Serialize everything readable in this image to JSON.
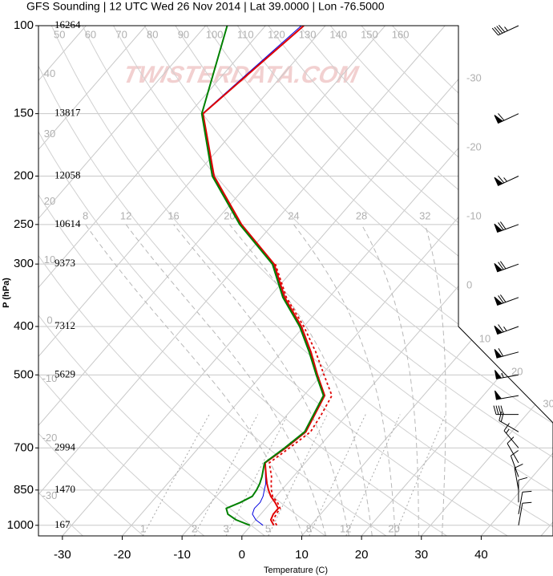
{
  "chart_data": {
    "type": "skewt",
    "title": "GFS Sounding | 12 UTC Wed 26 Nov 2014 | Lat 39.0000 | Lon -76.5000",
    "xlabel": "Temperature (C)",
    "ylabel": "P (hPa)",
    "watermark": "TWISTERDATA.COM",
    "xlim": [
      -34,
      52
    ],
    "ylim": [
      1050,
      100
    ],
    "xticks": [
      -30,
      -20,
      -10,
      0,
      10,
      20,
      30,
      40
    ],
    "yticks": [
      100,
      150,
      200,
      250,
      300,
      400,
      500,
      700,
      850,
      1000
    ],
    "heights": [
      16264,
      13817,
      12058,
      10614,
      9373,
      7312,
      5629,
      2994,
      1470,
      167
    ],
    "grid": true,
    "pressure": [
      1000,
      975,
      950,
      925,
      900,
      875,
      850,
      825,
      800,
      750,
      700,
      650,
      600,
      550,
      500,
      450,
      400,
      350,
      300,
      250,
      200,
      150,
      100
    ],
    "series": [
      {
        "color": "#0000e0",
        "values": [
          2.0,
          0.0,
          -1.4,
          -1.9,
          -1.8,
          -2.2,
          -2.9,
          -3.6,
          -4.6,
          -6.7,
          -5.5,
          -4.5,
          -5.5,
          -6.6,
          -10.8,
          -15.3,
          -20.6,
          -27.6,
          -34.2,
          -45.4,
          -57.0,
          -67.8,
          -64.0
        ]
      },
      {
        "color": "#e00000",
        "values": [
          3.8,
          2.5,
          2.1,
          2.1,
          0.7,
          -0.9,
          -2.2,
          -3.4,
          -4.5,
          -6.7,
          -5.4,
          -4.4,
          -5.4,
          -6.5,
          -10.7,
          -15.1,
          -20.4,
          -27.4,
          -34.0,
          -45.2,
          -56.8,
          -67.7,
          -63.6
        ]
      },
      {
        "color": "#e00000",
        "dash": "dotted",
        "values": [
          4.3,
          2.9,
          2.6,
          2.4,
          1.1,
          -0.6,
          -1.7,
          -2.7,
          -3.6,
          -6.0,
          -4.8,
          -3.6,
          -4.3,
          -5.3,
          -9.6,
          -14.3,
          -20.0,
          -27.1,
          -33.8,
          null,
          null,
          null,
          null
        ]
      },
      {
        "color": "#008000",
        "values": [
          -0.2,
          -3.3,
          -5.5,
          -6.6,
          -5.1,
          -4.0,
          -4.2,
          -4.6,
          -5.2,
          -6.8,
          -5.6,
          -4.6,
          -5.6,
          -6.7,
          -10.9,
          -15.4,
          -20.7,
          -27.7,
          -34.3,
          -45.5,
          -57.1,
          -67.9,
          -76.4
        ]
      }
    ],
    "isotherms": [
      -110,
      -100,
      -90,
      -80,
      -70,
      -60,
      -50,
      -40,
      -30,
      -20,
      -10,
      0,
      10,
      20,
      30,
      40,
      50
    ],
    "dry_adiabats": [
      -30,
      -20,
      -10,
      0,
      10,
      20,
      30,
      40,
      50,
      60,
      70,
      80,
      90,
      100,
      110,
      120,
      130,
      140,
      150,
      160
    ],
    "moist_adiabats": [
      8,
      12,
      16,
      20,
      24,
      28,
      32
    ],
    "mixing_ratios": [
      1,
      2,
      3,
      5,
      8,
      12,
      20
    ],
    "winds": {
      "pressure": [
        100,
        150,
        200,
        250,
        300,
        350,
        400,
        450,
        500,
        550,
        600,
        650,
        700,
        750,
        800,
        850,
        900,
        950,
        1000
      ],
      "speed": [
        45,
        60,
        65,
        70,
        70,
        70,
        65,
        60,
        55,
        50,
        40,
        20,
        15,
        10,
        10,
        10,
        10,
        10,
        10
      ],
      "direction": [
        245,
        245,
        245,
        250,
        250,
        250,
        250,
        255,
        260,
        260,
        270,
        300,
        320,
        330,
        340,
        350,
        0,
        10,
        10
      ]
    }
  }
}
